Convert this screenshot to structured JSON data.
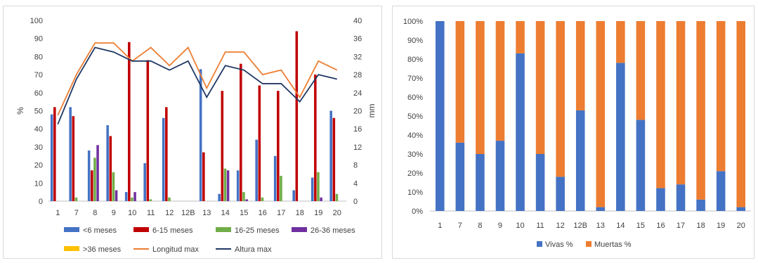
{
  "chart_data": [
    {
      "type": "bar",
      "categories": [
        "1",
        "7",
        "8",
        "9",
        "10",
        "11",
        "12",
        "12B",
        "13",
        "14",
        "15",
        "16",
        "17",
        "18",
        "19",
        "20"
      ],
      "ylabel": "%",
      "y2label": "mm",
      "ylim": [
        0,
        100
      ],
      "y2lim": [
        0,
        40
      ],
      "yticks": [
        "0",
        "10",
        "20",
        "30",
        "40",
        "50",
        "60",
        "70",
        "80",
        "90",
        "100"
      ],
      "y2ticks": [
        "0",
        "4",
        "8",
        "12",
        "16",
        "20",
        "24",
        "28",
        "32",
        "36",
        "40"
      ],
      "series": [
        {
          "name": "<6 meses",
          "color": "#4472c4",
          "values": [
            48,
            52,
            28,
            42,
            5,
            21,
            46,
            0,
            73,
            4,
            17,
            34,
            25,
            6,
            13,
            50
          ]
        },
        {
          "name": "6-15 meses",
          "color": "#c00000",
          "values": [
            52,
            47,
            17,
            36,
            88,
            78,
            52,
            0,
            27,
            61,
            76,
            64,
            61,
            94,
            70,
            46
          ]
        },
        {
          "name": "16-25 meses",
          "color": "#70ad47",
          "values": [
            0,
            2,
            24,
            16,
            2,
            1,
            2,
            0,
            0,
            18,
            5,
            2,
            14,
            0,
            16,
            4
          ]
        },
        {
          "name": "26-36 meses",
          "color": "#7030a0",
          "values": [
            0,
            0,
            31,
            6,
            5,
            0,
            0,
            0,
            0,
            17,
            1,
            0,
            0,
            0,
            2,
            0
          ]
        },
        {
          "name": ">36 meses",
          "color": "#ffc000",
          "values": [
            0,
            0,
            0,
            0,
            0,
            0,
            0,
            0,
            0,
            0,
            0,
            0,
            0,
            0,
            0,
            0
          ]
        }
      ],
      "lines": [
        {
          "name": "Longitud max",
          "color": "#ed7d31",
          "axis": "right",
          "values": [
            19,
            28,
            35,
            35,
            31,
            34,
            30,
            34,
            25,
            33,
            33,
            28,
            29,
            23,
            31,
            29
          ]
        },
        {
          "name": "Altura max",
          "color": "#203864",
          "axis": "right",
          "values": [
            17,
            27,
            34,
            33,
            31,
            31,
            29,
            31,
            23,
            30,
            29,
            26,
            26,
            22,
            28,
            27
          ]
        }
      ],
      "legend_position": "bottom"
    },
    {
      "type": "bar",
      "stacked": true,
      "categories": [
        "1",
        "7",
        "8",
        "9",
        "10",
        "11",
        "12",
        "12B",
        "13",
        "14",
        "15",
        "16",
        "17",
        "18",
        "19",
        "20"
      ],
      "ylim": [
        0,
        100
      ],
      "yticks": [
        "0%",
        "10%",
        "20%",
        "30%",
        "40%",
        "50%",
        "60%",
        "70%",
        "80%",
        "90%",
        "100%"
      ],
      "series": [
        {
          "name": "Vivas %",
          "color": "#4472c4",
          "values": [
            100,
            36,
            30,
            37,
            83,
            30,
            18,
            53,
            2,
            78,
            48,
            12,
            14,
            6,
            21,
            2
          ]
        },
        {
          "name": "Muertas %",
          "color": "#ed7d31",
          "values": [
            0,
            64,
            70,
            63,
            17,
            70,
            82,
            47,
            98,
            22,
            52,
            88,
            86,
            94,
            79,
            98
          ]
        }
      ],
      "legend_position": "bottom"
    }
  ]
}
